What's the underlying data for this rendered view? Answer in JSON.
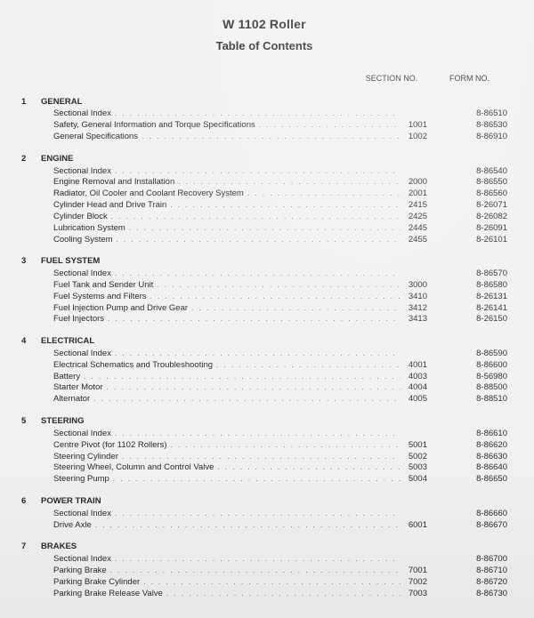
{
  "title": "W 1102 Roller",
  "subtitle": "Table of Contents",
  "columns": {
    "section": "SECTION NO.",
    "form": "FORM NO."
  },
  "sections": [
    {
      "num": "1",
      "title": "GENERAL",
      "entries": [
        {
          "label": "Sectional Index",
          "section": "",
          "form": "8-86510"
        },
        {
          "label": "Safety, General Information and Torque Specifications",
          "section": "1001",
          "form": "8-86530"
        },
        {
          "label": "General Specifications",
          "section": "1002",
          "form": "8-86910"
        }
      ]
    },
    {
      "num": "2",
      "title": "ENGINE",
      "entries": [
        {
          "label": "Sectional Index",
          "section": "",
          "form": "8-86540"
        },
        {
          "label": "Engine Removal and Installation",
          "section": "2000",
          "form": "8-86550"
        },
        {
          "label": "Radiator, Oil Cooler and Coolant Recovery System",
          "section": "2001",
          "form": "8-86560"
        },
        {
          "label": "Cylinder Head and Drive Train",
          "section": "2415",
          "form": "8-26071"
        },
        {
          "label": "Cylinder Block",
          "section": "2425",
          "form": "8-26082"
        },
        {
          "label": "Lubrication System",
          "section": "2445",
          "form": "8-26091"
        },
        {
          "label": "Cooling System",
          "section": "2455",
          "form": "8-26101"
        }
      ]
    },
    {
      "num": "3",
      "title": "FUEL SYSTEM",
      "entries": [
        {
          "label": "Sectional Index",
          "section": "",
          "form": "8-86570"
        },
        {
          "label": "Fuel Tank and Sender Unit",
          "section": "3000",
          "form": "8-86580"
        },
        {
          "label": "Fuel Systems and Filters",
          "section": "3410",
          "form": "8-26131"
        },
        {
          "label": "Fuel Injection Pump and Drive Gear",
          "section": "3412",
          "form": "8-26141"
        },
        {
          "label": "Fuel Injectors",
          "section": "3413",
          "form": "8-26150"
        }
      ]
    },
    {
      "num": "4",
      "title": "ELECTRICAL",
      "entries": [
        {
          "label": "Sectional Index",
          "section": "",
          "form": "8-86590"
        },
        {
          "label": "Electrical Schematics and Troubleshooting",
          "section": "4001",
          "form": "8-86600"
        },
        {
          "label": "Battery",
          "section": "4003",
          "form": "8-56980"
        },
        {
          "label": "Starter Motor",
          "section": "4004",
          "form": "8-88500"
        },
        {
          "label": "Alternator",
          "section": "4005",
          "form": "8-88510"
        }
      ]
    },
    {
      "num": "5",
      "title": "STEERING",
      "entries": [
        {
          "label": "Sectional Index",
          "section": "",
          "form": "8-86610"
        },
        {
          "label": "Centre Pivot (for 1102 Rollers)",
          "section": "5001",
          "form": "8-86620"
        },
        {
          "label": "Steering Cylinder",
          "section": "5002",
          "form": "8-86630"
        },
        {
          "label": "Steering Wheel, Column and Control Valve",
          "section": "5003",
          "form": "8-86640"
        },
        {
          "label": "Steering Pump",
          "section": "5004",
          "form": "8-86650"
        }
      ]
    },
    {
      "num": "6",
      "title": "POWER TRAIN",
      "entries": [
        {
          "label": "Sectional Index",
          "section": "",
          "form": "8-86660"
        },
        {
          "label": "Drive Axle",
          "section": "6001",
          "form": "8-86670"
        }
      ]
    },
    {
      "num": "7",
      "title": "BRAKES",
      "entries": [
        {
          "label": "Sectional Index",
          "section": "",
          "form": "8-86700"
        },
        {
          "label": "Parking Brake",
          "section": "7001",
          "form": "8-86710"
        },
        {
          "label": "Parking Brake Cylinder",
          "section": "7002",
          "form": "8-86720"
        },
        {
          "label": "Parking Brake Release Valve",
          "section": "7003",
          "form": "8-86730"
        }
      ]
    }
  ]
}
